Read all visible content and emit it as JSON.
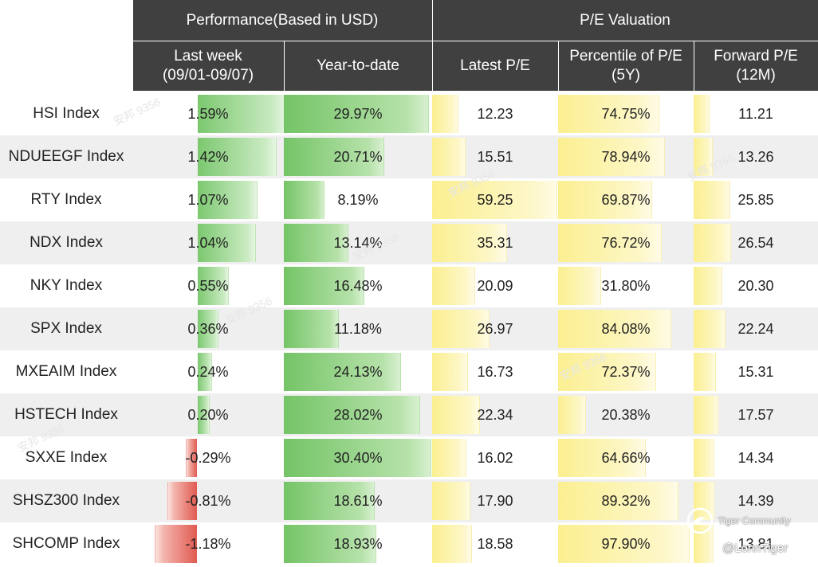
{
  "header": {
    "group_performance": "Performance(Based in USD)",
    "group_valuation": "P/E Valuation",
    "col_last_week": "Last week\n(09/01-09/07)",
    "col_ytd": "Year-to-date",
    "col_latest_pe": "Latest P/E",
    "col_percentile": "Percentile of P/E\n(5Y)",
    "col_forward_pe": "Forward P/E\n(12M)"
  },
  "chart_data": {
    "type": "table",
    "columns": [
      "Last week (09/01-09/07)",
      "Year-to-date",
      "Latest P/E",
      "Percentile of P/E (5Y)",
      "Forward P/E (12M)"
    ],
    "rows": [
      {
        "name": "HSI Index",
        "last_week": 1.59,
        "ytd": 29.97,
        "latest_pe": 12.23,
        "percentile": 74.75,
        "forward_pe": 11.21
      },
      {
        "name": "NDUEEGF Index",
        "last_week": 1.42,
        "ytd": 20.71,
        "latest_pe": 15.51,
        "percentile": 78.94,
        "forward_pe": 13.26
      },
      {
        "name": "RTY Index",
        "last_week": 1.07,
        "ytd": 8.19,
        "latest_pe": 59.25,
        "percentile": 69.87,
        "forward_pe": 25.85
      },
      {
        "name": "NDX Index",
        "last_week": 1.04,
        "ytd": 13.14,
        "latest_pe": 35.31,
        "percentile": 76.72,
        "forward_pe": 26.54
      },
      {
        "name": "NKY Index",
        "last_week": 0.55,
        "ytd": 16.48,
        "latest_pe": 20.09,
        "percentile": 31.8,
        "forward_pe": 20.3
      },
      {
        "name": "SPX Index",
        "last_week": 0.36,
        "ytd": 11.18,
        "latest_pe": 26.97,
        "percentile": 84.08,
        "forward_pe": 22.24
      },
      {
        "name": "MXEAIM Index",
        "last_week": 0.24,
        "ytd": 24.13,
        "latest_pe": 16.73,
        "percentile": 72.37,
        "forward_pe": 15.31
      },
      {
        "name": "HSTECH Index",
        "last_week": 0.2,
        "ytd": 28.02,
        "latest_pe": 22.34,
        "percentile": 20.38,
        "forward_pe": 17.57
      },
      {
        "name": "SXXE Index",
        "last_week": -0.29,
        "ytd": 30.4,
        "latest_pe": 16.02,
        "percentile": 64.66,
        "forward_pe": 14.34
      },
      {
        "name": "SHSZ300 Index",
        "last_week": -0.81,
        "ytd": 18.61,
        "latest_pe": 17.9,
        "percentile": 89.32,
        "forward_pe": 14.39
      },
      {
        "name": "SHCOMP Index",
        "last_week": -1.18,
        "ytd": 18.93,
        "latest_pe": 18.58,
        "percentile": 97.9,
        "forward_pe": 13.81
      }
    ],
    "display": {
      "last_week": [
        "1.59%",
        "1.42%",
        "1.07%",
        "1.04%",
        "0.55%",
        "0.36%",
        "0.24%",
        "0.20%",
        "-0.29%",
        "-0.81%",
        "-1.18%"
      ],
      "ytd": [
        "29.97%",
        "20.71%",
        "8.19%",
        "13.14%",
        "16.48%",
        "11.18%",
        "24.13%",
        "28.02%",
        "30.40%",
        "18.61%",
        "18.93%"
      ],
      "latest_pe": [
        "12.23",
        "15.51",
        "59.25",
        "35.31",
        "20.09",
        "26.97",
        "16.73",
        "22.34",
        "16.02",
        "17.90",
        "18.58"
      ],
      "percentile": [
        "74.75%",
        "78.94%",
        "69.87%",
        "76.72%",
        "31.80%",
        "84.08%",
        "72.37%",
        "20.38%",
        "64.66%",
        "89.32%",
        "97.90%"
      ],
      "forward_pe": [
        "11.21",
        "13.26",
        "25.85",
        "26.54",
        "20.30",
        "22.24",
        "15.31",
        "17.57",
        "14.34",
        "14.39",
        "13.81"
      ]
    }
  },
  "watermark": {
    "community_label": "Tiger Community",
    "handle": "@LonnTiger"
  },
  "colors": {
    "header_bg": "#404040",
    "positive_bar": "#7cc870",
    "negative_bar": "#e05a50",
    "pe_bar": "#fbef90",
    "alt_row": "#efefef"
  }
}
